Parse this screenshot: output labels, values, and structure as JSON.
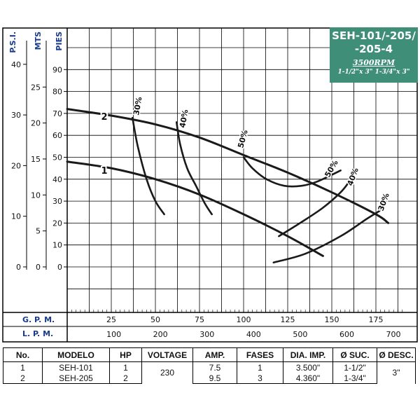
{
  "title_box": {
    "model": "SEH-101/-205/\n-205-4",
    "rpm": "3500RPM",
    "sizes": "1-1/2\"x 3\"  1-3/4\"x 3\""
  },
  "chart_data": {
    "type": "line",
    "title": "SEH-101/-205/-205-4",
    "axes_labels": {
      "psi": "P.S.I.",
      "mts": "MTS",
      "pies": "PIES",
      "gpm": "G. P. M.",
      "lpm": "L. P. M."
    },
    "psi_ticks": [
      "0",
      "10",
      "20",
      "30",
      "40"
    ],
    "mts_ticks": [
      "0",
      "5",
      "10",
      "15",
      "20",
      "25"
    ],
    "pies_ticks": [
      "0",
      "10",
      "20",
      "30",
      "40",
      "50",
      "60",
      "70",
      "80",
      "90"
    ],
    "gpm_ticks": [
      "25",
      "50",
      "75",
      "100",
      "125",
      "150",
      "175"
    ],
    "lpm_ticks": [
      "100",
      "200",
      "300",
      "400",
      "500",
      "600",
      "700"
    ],
    "xlim_gpm": [
      0,
      190
    ],
    "ylim_ft": [
      0,
      95
    ],
    "grid": true,
    "series": [
      {
        "name": "1",
        "x_gpm": [
          0,
          25,
          50,
          75,
          100,
          125,
          145
        ],
        "y_ft": [
          48,
          45,
          40,
          33,
          24,
          14,
          5
        ]
      },
      {
        "name": "2",
        "x_gpm": [
          0,
          25,
          50,
          75,
          100,
          125,
          150,
          175,
          182
        ],
        "y_ft": [
          72,
          69,
          65,
          59,
          51,
          43,
          34,
          24,
          20
        ]
      }
    ],
    "efficiency_curves": [
      {
        "label": "30%",
        "x_gpm": [
          37,
          40,
          45,
          50,
          55
        ],
        "y_ft": [
          68,
          55,
          40,
          30,
          24
        ]
      },
      {
        "label": "40%",
        "x_gpm": [
          62,
          64,
          68,
          73,
          78,
          82
        ],
        "y_ft": [
          66,
          56,
          45,
          37,
          29,
          24
        ]
      },
      {
        "label": "50%",
        "x_gpm": [
          100,
          105,
          113,
          123,
          133,
          142,
          155
        ],
        "y_ft": [
          50,
          45,
          40,
          37,
          37,
          39,
          44
        ]
      },
      {
        "label": "50%",
        "x_gpm": [
          0
        ],
        "y_ft": [
          0
        ]
      },
      {
        "label": "40%",
        "x_gpm": [
          120,
          132,
          145,
          155,
          160
        ],
        "y_ft": [
          14,
          20,
          27,
          34,
          39
        ]
      },
      {
        "label": "30%",
        "x_gpm": [
          117,
          135,
          155,
          170,
          178
        ],
        "y_ft": [
          2,
          6,
          14,
          22,
          26
        ]
      }
    ],
    "curve_labels": [
      "1",
      "2"
    ]
  },
  "specs_table": {
    "headers": [
      "No.",
      "MODELO",
      "HP",
      "VOLTAGE",
      "AMP.",
      "FASES",
      "DIA. IMP.",
      "Ø SUC.",
      "Ø DESC."
    ],
    "rows": [
      [
        "1",
        "SEH-101",
        "1",
        "",
        "7.5",
        "1",
        "3.500\"",
        "1-1/2\"",
        ""
      ],
      [
        "2",
        "SEH-205",
        "2",
        "",
        "9.5",
        "3",
        "4.360\"",
        "1-3/4\"",
        ""
      ]
    ],
    "voltage_shared": "230",
    "desc_shared": "3\""
  }
}
